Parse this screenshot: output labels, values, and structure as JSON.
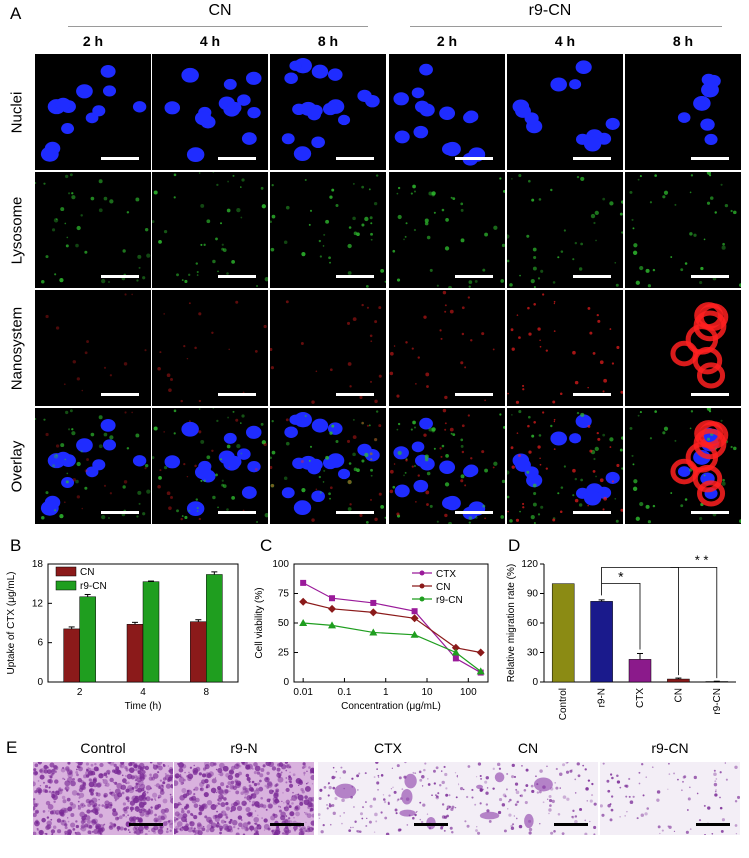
{
  "panel_letters": [
    "A",
    "B",
    "C",
    "D",
    "E"
  ],
  "panel_a": {
    "groups": [
      "CN",
      "r9-CN"
    ],
    "times": [
      "2 h",
      "4 h",
      "8 h",
      "2 h",
      "4 h",
      "8 h"
    ],
    "rows": [
      "Nuclei",
      "Lysosome",
      "Nanosystem",
      "Overlay"
    ],
    "colors": {
      "nuclei": "#1f2cff",
      "lysosome": "#2fbf2f",
      "nanosystem": "#ff2020"
    }
  },
  "chart_data": [
    {
      "panel": "B",
      "type": "bar",
      "categories": [
        "2",
        "4",
        "8"
      ],
      "series": [
        {
          "name": "CN",
          "values": [
            8.1,
            8.8,
            9.2
          ],
          "errors": [
            0.3,
            0.3,
            0.3
          ],
          "color": "#8b1a1a"
        },
        {
          "name": "r9-CN",
          "values": [
            13.0,
            15.3,
            16.4
          ],
          "errors": [
            0.35,
            0.1,
            0.4
          ],
          "color": "#1f9e1f"
        }
      ],
      "xlabel": "Time (h)",
      "ylabel": "Uptake of CTX (μg/mL)",
      "ylim": [
        0,
        18
      ],
      "yticks": [
        "0",
        "6",
        "12",
        "18"
      ],
      "legend": "top-left"
    },
    {
      "panel": "C",
      "type": "line",
      "x": [
        0.01,
        0.05,
        0.5,
        5,
        50,
        200
      ],
      "series": [
        {
          "name": "CTX",
          "values": [
            84,
            71,
            67,
            60,
            20,
            8
          ],
          "color": "#9a1a9a",
          "marker": "square"
        },
        {
          "name": "CN",
          "values": [
            68,
            62,
            59,
            54,
            29,
            25
          ],
          "color": "#8b1a1a",
          "marker": "diamond"
        },
        {
          "name": "r9-CN",
          "values": [
            50,
            48,
            42,
            40,
            25,
            9
          ],
          "color": "#1f9e1f",
          "marker": "triangle"
        }
      ],
      "xscale": "log",
      "xticks": [
        "0.01",
        "0.1",
        "1",
        "10",
        "100"
      ],
      "xlabel": "Concentration (μg/mL)",
      "ylabel": "Cell viability (%)",
      "ylim": [
        0,
        100
      ],
      "yticks": [
        "0",
        "25",
        "50",
        "75",
        "100"
      ],
      "legend": "top-right"
    },
    {
      "panel": "D",
      "type": "bar",
      "categories": [
        "Control",
        "r9-N",
        "CTX",
        "CN",
        "r9-CN"
      ],
      "values": [
        100,
        82,
        23,
        3,
        0.5
      ],
      "errors": [
        0,
        1.5,
        6,
        1,
        0.3
      ],
      "colors": [
        "#8b8b14",
        "#1a1a8c",
        "#8b1a8b",
        "#8b1a1a",
        "#1a1a8c"
      ],
      "ylabel": "Relative migration rate (%)",
      "ylim": [
        0,
        120
      ],
      "yticks": [
        "0",
        "30",
        "60",
        "90",
        "120"
      ],
      "annotations": [
        "*",
        "* *"
      ]
    }
  ],
  "panel_e": {
    "labels": [
      "Control",
      "r9-N",
      "CTX",
      "CN",
      "r9-CN"
    ],
    "density": [
      0.95,
      0.85,
      0.18,
      0.14,
      0.05
    ]
  }
}
